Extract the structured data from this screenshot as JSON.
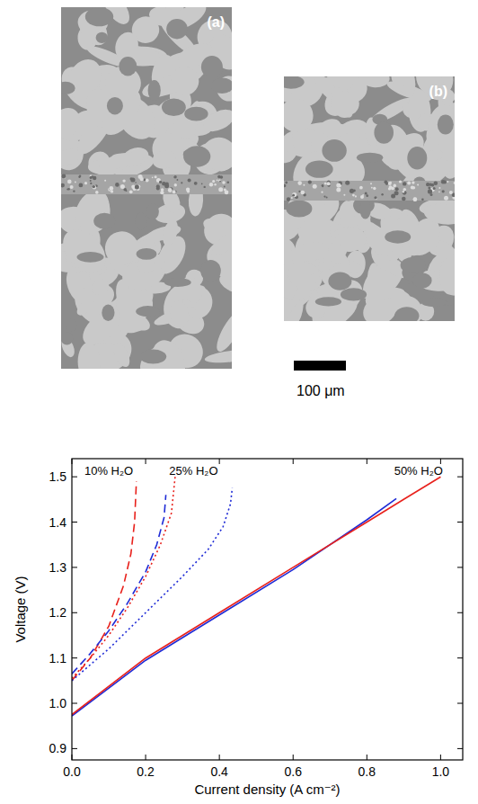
{
  "panels": [
    {
      "label": "(a)"
    },
    {
      "label": "(b)"
    }
  ],
  "scale_bar": {
    "label": "100 μm"
  },
  "chart_data": {
    "type": "line",
    "x_label": "Current density (A cm⁻²)",
    "y_label": "Voltage (V)",
    "xlim": [
      0,
      1.06
    ],
    "ylim": [
      0.875,
      1.54
    ],
    "xticks": [
      {
        "value": 0,
        "label": "0.0"
      },
      0.2,
      0.4,
      0.6,
      0.8,
      {
        "value": 1,
        "label": "1.0"
      }
    ],
    "yticks": [
      0.9,
      {
        "value": 1,
        "label": "1.0"
      },
      1.1,
      1.2,
      1.3,
      1.4,
      1.5
    ],
    "grid": false,
    "annotations": [
      {
        "text": "10% H₂O",
        "x": 0.1,
        "y": 1.505
      },
      {
        "text": "25% H₂O",
        "x": 0.33,
        "y": 1.505
      },
      {
        "text": "50% H₂O",
        "x": 0.94,
        "y": 1.505
      }
    ],
    "series": [
      {
        "color": "#e8211c",
        "line_style": "dashed",
        "x": [
          0,
          0.05,
          0.1,
          0.14,
          0.16,
          0.17,
          0.175
        ],
        "values": [
          1.05,
          1.1,
          1.17,
          1.26,
          1.33,
          1.4,
          1.49
        ]
      },
      {
        "color": "#1f2bd6",
        "line_style": "dashed",
        "x": [
          0,
          0.05,
          0.1,
          0.15,
          0.2,
          0.23,
          0.25,
          0.255
        ],
        "values": [
          1.065,
          1.11,
          1.16,
          1.22,
          1.29,
          1.35,
          1.41,
          1.46
        ]
      },
      {
        "color": "#e8211c",
        "line_style": "dotted",
        "x": [
          0,
          0.05,
          0.1,
          0.15,
          0.2,
          0.24,
          0.27,
          0.28
        ],
        "values": [
          1.055,
          1.1,
          1.15,
          1.21,
          1.28,
          1.35,
          1.42,
          1.5
        ]
      },
      {
        "color": "#1f2bd6",
        "line_style": "dotted",
        "x": [
          0,
          0.1,
          0.2,
          0.3,
          0.37,
          0.41,
          0.43,
          0.435
        ],
        "values": [
          1.05,
          1.12,
          1.2,
          1.28,
          1.34,
          1.39,
          1.44,
          1.475
        ]
      },
      {
        "color": "#1f2bd6",
        "line_style": "solid",
        "x": [
          0,
          0.2,
          0.4,
          0.6,
          0.8,
          0.88
        ],
        "values": [
          0.972,
          1.095,
          1.195,
          1.295,
          1.405,
          1.452
        ]
      },
      {
        "color": "#e8211c",
        "line_style": "solid",
        "x": [
          0,
          0.2,
          0.4,
          0.6,
          0.8,
          0.9,
          1.0
        ],
        "values": [
          0.975,
          1.1,
          1.2,
          1.3,
          1.4,
          1.45,
          1.5
        ]
      }
    ]
  }
}
